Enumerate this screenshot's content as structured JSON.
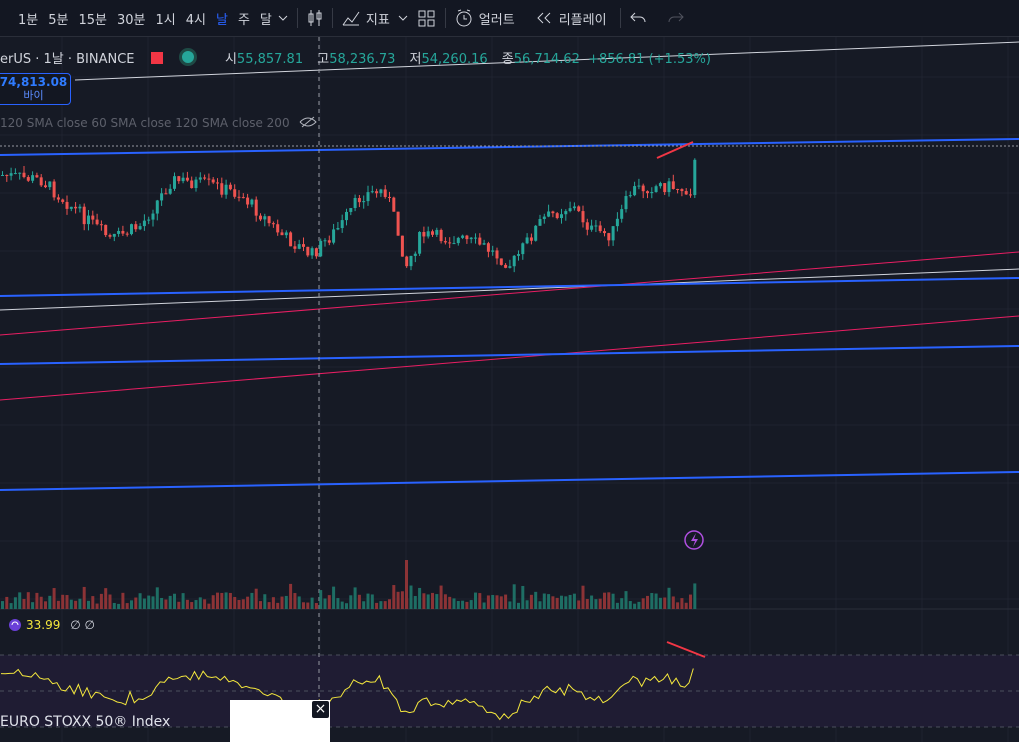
{
  "toolbar": {
    "intervals": [
      "1분",
      "5분",
      "15분",
      "30분",
      "1시",
      "4시",
      "날",
      "주",
      "달"
    ],
    "indicators": "지표",
    "alert": "얼러트",
    "replay": "리플레이"
  },
  "legend": {
    "symbol": "erUS · 1날 · BINANCE",
    "open_label": "시",
    "open": "55,857.81",
    "high_label": "고",
    "high": "58,236.73",
    "low_label": "저",
    "low": "54,260.16",
    "close_label": "종",
    "close": "56,714.62",
    "change": "+856.81 (+1.53%)"
  },
  "order_button": {
    "price": "74,813.08",
    "label": "바이"
  },
  "indicators": "120 SMA close 60 SMA close 120 SMA close 200",
  "rsi": {
    "value": "33.99",
    "extra": "∅ ∅"
  },
  "popup": {
    "title": "EURO STOXX 50® Index"
  }
}
